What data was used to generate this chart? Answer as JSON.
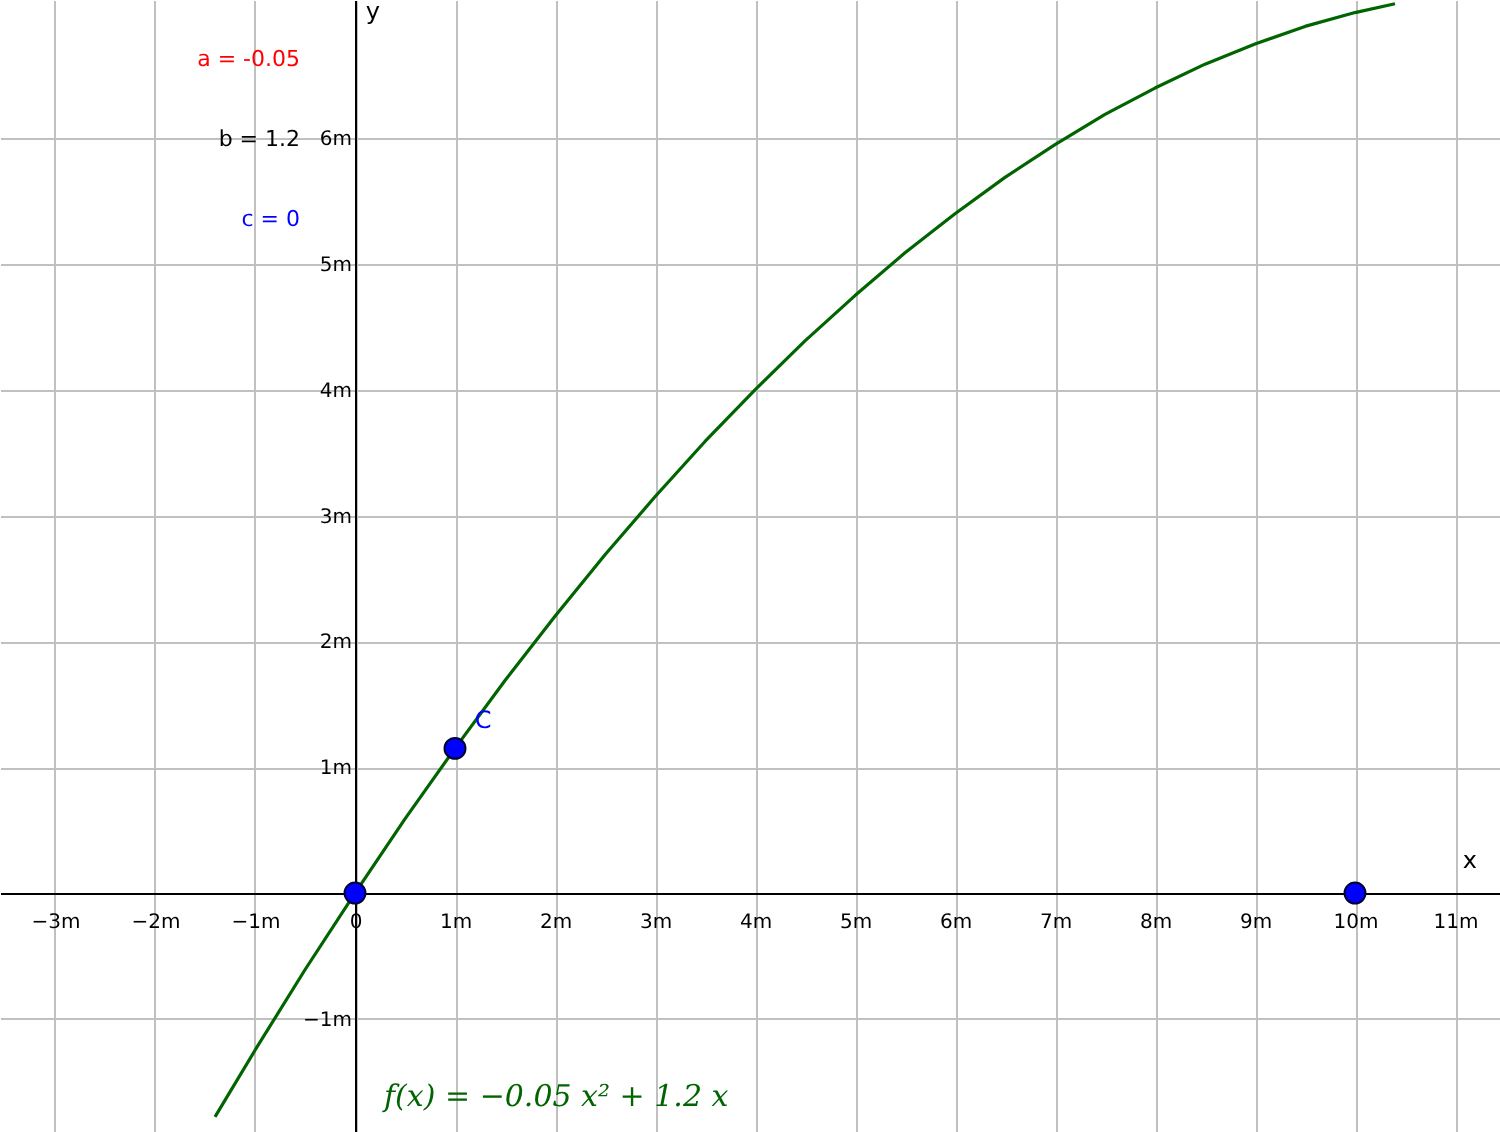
{
  "chart_data": {
    "type": "line",
    "xlabel": "x",
    "ylabel": "y",
    "xlim": [
      -3.55,
      11.45
    ],
    "ylim": [
      -1.9,
      7.1
    ],
    "xticks": [
      {
        "value": -3,
        "label": "−3m"
      },
      {
        "value": -2,
        "label": "−2m"
      },
      {
        "value": -1,
        "label": "−1m"
      },
      {
        "value": 0,
        "label": "0"
      },
      {
        "value": 1,
        "label": "1m"
      },
      {
        "value": 2,
        "label": "2m"
      },
      {
        "value": 3,
        "label": "3m"
      },
      {
        "value": 4,
        "label": "4m"
      },
      {
        "value": 5,
        "label": "5m"
      },
      {
        "value": 6,
        "label": "6m"
      },
      {
        "value": 7,
        "label": "7m"
      },
      {
        "value": 8,
        "label": "8m"
      },
      {
        "value": 9,
        "label": "9m"
      },
      {
        "value": 10,
        "label": "10m"
      },
      {
        "value": 11,
        "label": "11m"
      }
    ],
    "yticks": [
      {
        "value": -1,
        "label": "−1m"
      },
      {
        "value": 1,
        "label": "1m"
      },
      {
        "value": 2,
        "label": "2m"
      },
      {
        "value": 3,
        "label": "3m"
      },
      {
        "value": 4,
        "label": "4m"
      },
      {
        "value": 5,
        "label": "5m"
      },
      {
        "value": 6,
        "label": "6m"
      }
    ],
    "grid": true,
    "series": [
      {
        "type": "line",
        "color": "#006400",
        "x": [
          -1.4,
          -1,
          -0.5,
          0,
          0.5,
          1,
          1.5,
          2,
          2.5,
          3,
          3.5,
          4,
          4.5,
          5,
          5.5,
          6,
          6.5,
          7,
          7.5,
          8,
          8.5,
          9,
          9.5,
          10,
          10.4
        ],
        "values": [
          -1.78,
          -1.25,
          -0.61,
          0,
          0.59,
          1.15,
          1.69,
          2.2,
          2.69,
          3.15,
          3.59,
          4.0,
          4.39,
          4.75,
          5.09,
          5.4,
          5.69,
          5.95,
          6.19,
          6.4,
          6.59,
          6.75,
          6.89,
          7.0,
          7.07
        ]
      },
      {
        "type": "scatter",
        "color": "#0000ff",
        "marker": "circle",
        "x": [
          0,
          1,
          10
        ],
        "values": [
          0,
          1.15,
          0
        ]
      }
    ],
    "annotations": [
      {
        "text": "C",
        "x": 1,
        "y": 1.15
      },
      "f(x) = −0.05 x² + 1.2 x",
      "a = -0.05",
      "b = 1.2",
      "c = 0"
    ]
  }
}
